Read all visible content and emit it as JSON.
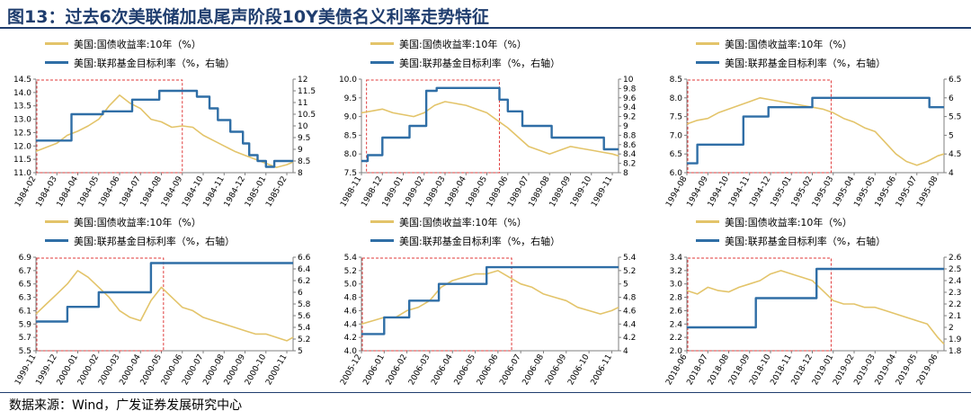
{
  "title": "图13：过去6次美联储加息尾声阶段10Y美债名义利率走势特征",
  "source": "数据来源：Wind，广发证券发展研究中心",
  "colors": {
    "yield": "#e3c46a",
    "fed": "#2f6ea6",
    "box": "#e03a3a",
    "axis": "#7f7f7f",
    "title": "#1f3d6e"
  },
  "chart_data": [
    {
      "type": "line",
      "legend": [
        "美国:国债收益率:10年（%）",
        "美国:联邦基金目标利率（%，右轴）"
      ],
      "ylim_left": [
        11.0,
        14.5
      ],
      "yticks_left": [
        "11.0",
        "11.5",
        "12.0",
        "12.5",
        "13.0",
        "13.5",
        "14.0",
        "14.5"
      ],
      "ylim_right": [
        8,
        12
      ],
      "yticks_right": [
        "8",
        "8.5",
        "9",
        "9.5",
        "10",
        "10.5",
        "11",
        "11.5",
        "12"
      ],
      "xticks": [
        "1984-02",
        "1984-03",
        "1984-04",
        "1984-05",
        "1984-06",
        "1984-07",
        "1984-08",
        "1984-09",
        "1984-10",
        "1984-11",
        "1984-12",
        "1985-01",
        "1985-02"
      ],
      "box": [
        0,
        7.0
      ],
      "series": [
        {
          "name": "美国:国债收益率:10年（%）",
          "axis": "left",
          "x": [
            0,
            0.5,
            1,
            1.5,
            2,
            2.5,
            3,
            3.5,
            4,
            4.5,
            5,
            5.5,
            6,
            6.5,
            7,
            7.5,
            8,
            8.5,
            9,
            9.5,
            10,
            10.5,
            11,
            11.5,
            12,
            12.3
          ],
          "y": [
            11.8,
            11.95,
            12.1,
            12.4,
            12.55,
            12.75,
            13.0,
            13.5,
            13.9,
            13.6,
            13.4,
            13.0,
            12.9,
            12.7,
            12.75,
            12.7,
            12.4,
            12.2,
            12.0,
            11.8,
            11.65,
            11.5,
            11.35,
            11.2,
            11.3,
            11.4
          ]
        },
        {
          "name": "美国:联邦基金目标利率（%，右轴）",
          "axis": "right",
          "x": [
            0,
            1.7,
            1.7,
            3.2,
            3.2,
            4.6,
            4.6,
            5.9,
            5.9,
            7.7,
            7.7,
            8.3,
            8.3,
            8.7,
            8.7,
            9.3,
            9.3,
            9.9,
            9.9,
            10.2,
            10.2,
            10.6,
            10.6,
            11.0,
            11.0,
            11.4,
            11.4,
            12.3
          ],
          "y": [
            9.375,
            9.375,
            10.5,
            10.5,
            10.625,
            10.625,
            11.125,
            11.125,
            11.5,
            11.5,
            11.25,
            11.25,
            10.75,
            10.75,
            10.25,
            10.25,
            9.75,
            9.75,
            9.25,
            9.25,
            8.75,
            8.75,
            8.5,
            8.5,
            8.25,
            8.25,
            8.5,
            8.5
          ]
        }
      ]
    },
    {
      "type": "line",
      "legend": [
        "美国:国债收益率:10年（%）",
        "美国:联邦基金目标利率（%，右轴）"
      ],
      "ylim_left": [
        7.5,
        10.0
      ],
      "yticks_left": [
        "7.5",
        "8.0",
        "8.5",
        "9.0",
        "9.5",
        "10.0"
      ],
      "ylim_right": [
        8.0,
        10.0
      ],
      "yticks_right": [
        "8",
        "8.2",
        "8.4",
        "8.6",
        "8.8",
        "9",
        "9.2",
        "9.4",
        "9.6",
        "9.8",
        "10"
      ],
      "xticks": [
        "1988-11",
        "1988-12",
        "1989-01",
        "1989-02",
        "1989-03",
        "1989-04",
        "1989-05",
        "1989-06",
        "1989-07",
        "1989-08",
        "1989-09",
        "1989-10",
        "1989-11"
      ],
      "box": [
        0.2,
        6.6
      ],
      "series": [
        {
          "name": "美国:国债收益率:10年（%）",
          "axis": "left",
          "x": [
            0,
            0.5,
            1,
            1.5,
            2,
            2.5,
            3,
            3.5,
            4,
            4.5,
            5,
            5.5,
            6,
            6.5,
            7,
            7.5,
            8,
            8.5,
            9,
            9.5,
            10,
            10.5,
            11,
            11.5,
            12,
            12.3
          ],
          "y": [
            9.1,
            9.15,
            9.2,
            9.1,
            9.05,
            9.0,
            9.1,
            9.3,
            9.4,
            9.35,
            9.3,
            9.2,
            9.1,
            8.9,
            8.7,
            8.45,
            8.2,
            8.1,
            8.0,
            8.1,
            8.2,
            8.15,
            8.1,
            8.05,
            8.0,
            7.95
          ]
        },
        {
          "name": "美国:联邦基金目标利率（%，右轴）",
          "axis": "right",
          "x": [
            0,
            0.3,
            0.3,
            1.0,
            1.0,
            2.3,
            2.3,
            3.1,
            3.1,
            3.6,
            3.6,
            6.6,
            6.6,
            7.0,
            7.0,
            7.7,
            7.7,
            9.1,
            9.1,
            11.6,
            11.6,
            12.3
          ],
          "y": [
            8.25,
            8.25,
            8.375,
            8.375,
            8.75,
            8.75,
            9.0,
            9.0,
            9.75,
            9.75,
            9.8125,
            9.8125,
            9.5625,
            9.5625,
            9.3125,
            9.3125,
            9.0,
            9.0,
            8.75,
            8.75,
            8.5,
            8.5
          ]
        }
      ]
    },
    {
      "type": "line",
      "legend": [
        "美国:国债收益率:10年（%）",
        "美国:联邦基金目标利率（%，右轴）"
      ],
      "ylim_left": [
        6.0,
        8.5
      ],
      "yticks_left": [
        "6.0",
        "6.5",
        "7.0",
        "7.5",
        "8.0",
        "8.5"
      ],
      "ylim_right": [
        4.0,
        6.5
      ],
      "yticks_right": [
        "4",
        "4.5",
        "5",
        "5.5",
        "6",
        "6.5"
      ],
      "xticks": [
        "1994-08",
        "1994-09",
        "1994-10",
        "1994-11",
        "1994-12",
        "1995-01",
        "1995-02",
        "1995-03",
        "1995-04",
        "1995-05",
        "1995-06",
        "1995-07",
        "1995-08"
      ],
      "box": [
        0,
        6.9
      ],
      "series": [
        {
          "name": "美国:国债收益率:10年（%）",
          "axis": "left",
          "x": [
            0,
            0.5,
            1,
            1.5,
            2,
            2.5,
            3,
            3.5,
            4,
            4.5,
            5,
            5.5,
            6,
            6.5,
            7,
            7.5,
            8,
            8.5,
            9,
            9.5,
            10,
            10.5,
            11,
            11.5,
            12,
            12.3
          ],
          "y": [
            7.3,
            7.4,
            7.45,
            7.6,
            7.7,
            7.8,
            7.9,
            8.0,
            7.95,
            7.9,
            7.85,
            7.8,
            7.75,
            7.7,
            7.6,
            7.45,
            7.35,
            7.2,
            7.1,
            6.8,
            6.5,
            6.3,
            6.2,
            6.3,
            6.45,
            6.5
          ]
        },
        {
          "name": "美国:联邦基金目标利率（%，右轴）",
          "axis": "right",
          "x": [
            0,
            0.5,
            0.5,
            2.7,
            2.7,
            3.9,
            3.9,
            6.0,
            6.0,
            11.6,
            11.6,
            12.3
          ],
          "y": [
            4.25,
            4.25,
            4.75,
            4.75,
            5.5,
            5.5,
            5.75,
            5.75,
            6.0,
            6.0,
            5.75,
            5.75
          ]
        }
      ]
    },
    {
      "type": "line",
      "legend": [
        "美国:国债收益率:10年（%）",
        "美国:联邦基金目标利率（%，右轴）"
      ],
      "ylim_left": [
        5.5,
        6.9
      ],
      "yticks_left": [
        "5.5",
        "5.7",
        "5.9",
        "6.1",
        "6.3",
        "6.5",
        "6.7",
        "6.9"
      ],
      "ylim_right": [
        5.0,
        6.6
      ],
      "yticks_right": [
        "5",
        "5.2",
        "5.4",
        "5.6",
        "5.8",
        "6",
        "6.2",
        "6.4",
        "6.6"
      ],
      "xticks": [
        "1999-11",
        "1999-12",
        "2000-01",
        "2000-02",
        "2000-03",
        "2000-04",
        "2000-05",
        "2000-06",
        "2000-07",
        "2000-08",
        "2000-09",
        "2000-10",
        "2000-11"
      ],
      "box": [
        0,
        6.1
      ],
      "series": [
        {
          "name": "美国:国债收益率:10年（%）",
          "axis": "left",
          "x": [
            0,
            0.5,
            1,
            1.5,
            2,
            2.5,
            3,
            3.5,
            4,
            4.5,
            5,
            5.5,
            6,
            6.5,
            7,
            7.5,
            8,
            8.5,
            9,
            9.5,
            10,
            10.5,
            11,
            11.5,
            12,
            12.3
          ],
          "y": [
            6.05,
            6.2,
            6.35,
            6.5,
            6.7,
            6.6,
            6.45,
            6.3,
            6.1,
            6.0,
            5.95,
            6.25,
            6.45,
            6.3,
            6.15,
            6.1,
            6.0,
            5.95,
            5.9,
            5.85,
            5.8,
            5.75,
            5.75,
            5.7,
            5.65,
            5.7
          ]
        },
        {
          "name": "美国:联邦基金目标利率（%，右轴）",
          "axis": "right",
          "x": [
            0,
            1.5,
            1.5,
            3.0,
            3.0,
            3.9,
            3.9,
            5.5,
            5.5,
            6.05,
            6.05,
            12.3
          ],
          "y": [
            5.5,
            5.5,
            5.75,
            5.75,
            6.0,
            6.0,
            6.0,
            6.0,
            6.5,
            6.5,
            6.5,
            6.5
          ]
        }
      ]
    },
    {
      "type": "line",
      "legend": [
        "美国:国债收益率:10年（%）",
        "美国:联邦基金目标利率（%，右轴）"
      ],
      "ylim_left": [
        4.0,
        5.4
      ],
      "yticks_left": [
        "4.0",
        "4.2",
        "4.4",
        "4.6",
        "4.8",
        "5.0",
        "5.2",
        "5.4"
      ],
      "ylim_right": [
        4.0,
        5.4
      ],
      "yticks_right": [
        "4",
        "4.2",
        "4.4",
        "4.6",
        "4.8",
        "5",
        "5.2",
        "5.4"
      ],
      "xticks": [
        "2005-12",
        "2006-01",
        "2006-02",
        "2006-03",
        "2006-04",
        "2006-05",
        "2006-06",
        "2006-07",
        "2006-08",
        "2006-09",
        "2006-10",
        "2006-11"
      ],
      "box": [
        0,
        6.6
      ],
      "series": [
        {
          "name": "美国:国债收益率:10年（%）",
          "axis": "left",
          "x": [
            0,
            0.5,
            1,
            1.5,
            2,
            2.5,
            3,
            3.5,
            4,
            4.5,
            5,
            5.5,
            6,
            6.5,
            7,
            7.5,
            8,
            8.5,
            9,
            9.5,
            10,
            10.5,
            11,
            11.3
          ],
          "y": [
            4.4,
            4.45,
            4.5,
            4.5,
            4.6,
            4.65,
            4.75,
            4.95,
            5.05,
            5.1,
            5.15,
            5.15,
            5.2,
            5.1,
            5.0,
            4.95,
            4.85,
            4.8,
            4.75,
            4.65,
            4.6,
            4.55,
            4.6,
            4.65
          ]
        },
        {
          "name": "美国:联邦基金目标利率（%，右轴）",
          "axis": "right",
          "x": [
            0,
            1.0,
            1.0,
            2.1,
            2.1,
            3.4,
            3.4,
            4.5,
            4.5,
            5.5,
            5.5,
            6.3,
            6.3,
            11.3
          ],
          "y": [
            4.25,
            4.25,
            4.5,
            4.5,
            4.75,
            4.75,
            5.0,
            5.0,
            5.0,
            5.0,
            5.25,
            5.25,
            5.25,
            5.25
          ]
        }
      ]
    },
    {
      "type": "line",
      "legend": [
        "美国:国债收益率:10年（%）",
        "美国:联邦基金目标利率（%，右轴）"
      ],
      "ylim_left": [
        2.0,
        3.4
      ],
      "yticks_left": [
        "2.0",
        "2.2",
        "2.4",
        "2.6",
        "2.8",
        "3.0",
        "3.2",
        "3.4"
      ],
      "ylim_right": [
        1.8,
        2.6
      ],
      "yticks_right": [
        "1.8",
        "1.9",
        "2",
        "2.1",
        "2.2",
        "2.3",
        "2.4",
        "2.5",
        "2.6"
      ],
      "xticks": [
        "2018-06",
        "2018-07",
        "2018-08",
        "2018-09",
        "2018-10",
        "2018-11",
        "2018-12",
        "2019-01",
        "2019-02",
        "2019-03",
        "2019-04",
        "2019-05",
        "2019-06"
      ],
      "box": [
        0,
        6.9
      ],
      "series": [
        {
          "name": "美国:国债收益率:10年（%）",
          "axis": "left",
          "x": [
            0,
            0.5,
            1,
            1.5,
            2,
            2.5,
            3,
            3.5,
            4,
            4.5,
            5,
            5.5,
            6,
            6.5,
            7,
            7.5,
            8,
            8.5,
            9,
            9.5,
            10,
            10.5,
            11,
            11.5,
            12,
            12.3
          ],
          "y": [
            2.9,
            2.85,
            2.95,
            2.9,
            2.88,
            2.95,
            3.0,
            3.05,
            3.15,
            3.2,
            3.15,
            3.1,
            3.05,
            2.9,
            2.75,
            2.7,
            2.7,
            2.65,
            2.65,
            2.6,
            2.55,
            2.5,
            2.45,
            2.4,
            2.2,
            2.1
          ]
        },
        {
          "name": "美国:联邦基金目标利率（%，右轴）",
          "axis": "right",
          "x": [
            0,
            3.3,
            3.3,
            6.2,
            6.2,
            12.3
          ],
          "y": [
            2.0,
            2.0,
            2.25,
            2.25,
            2.5,
            2.5
          ]
        }
      ]
    }
  ]
}
